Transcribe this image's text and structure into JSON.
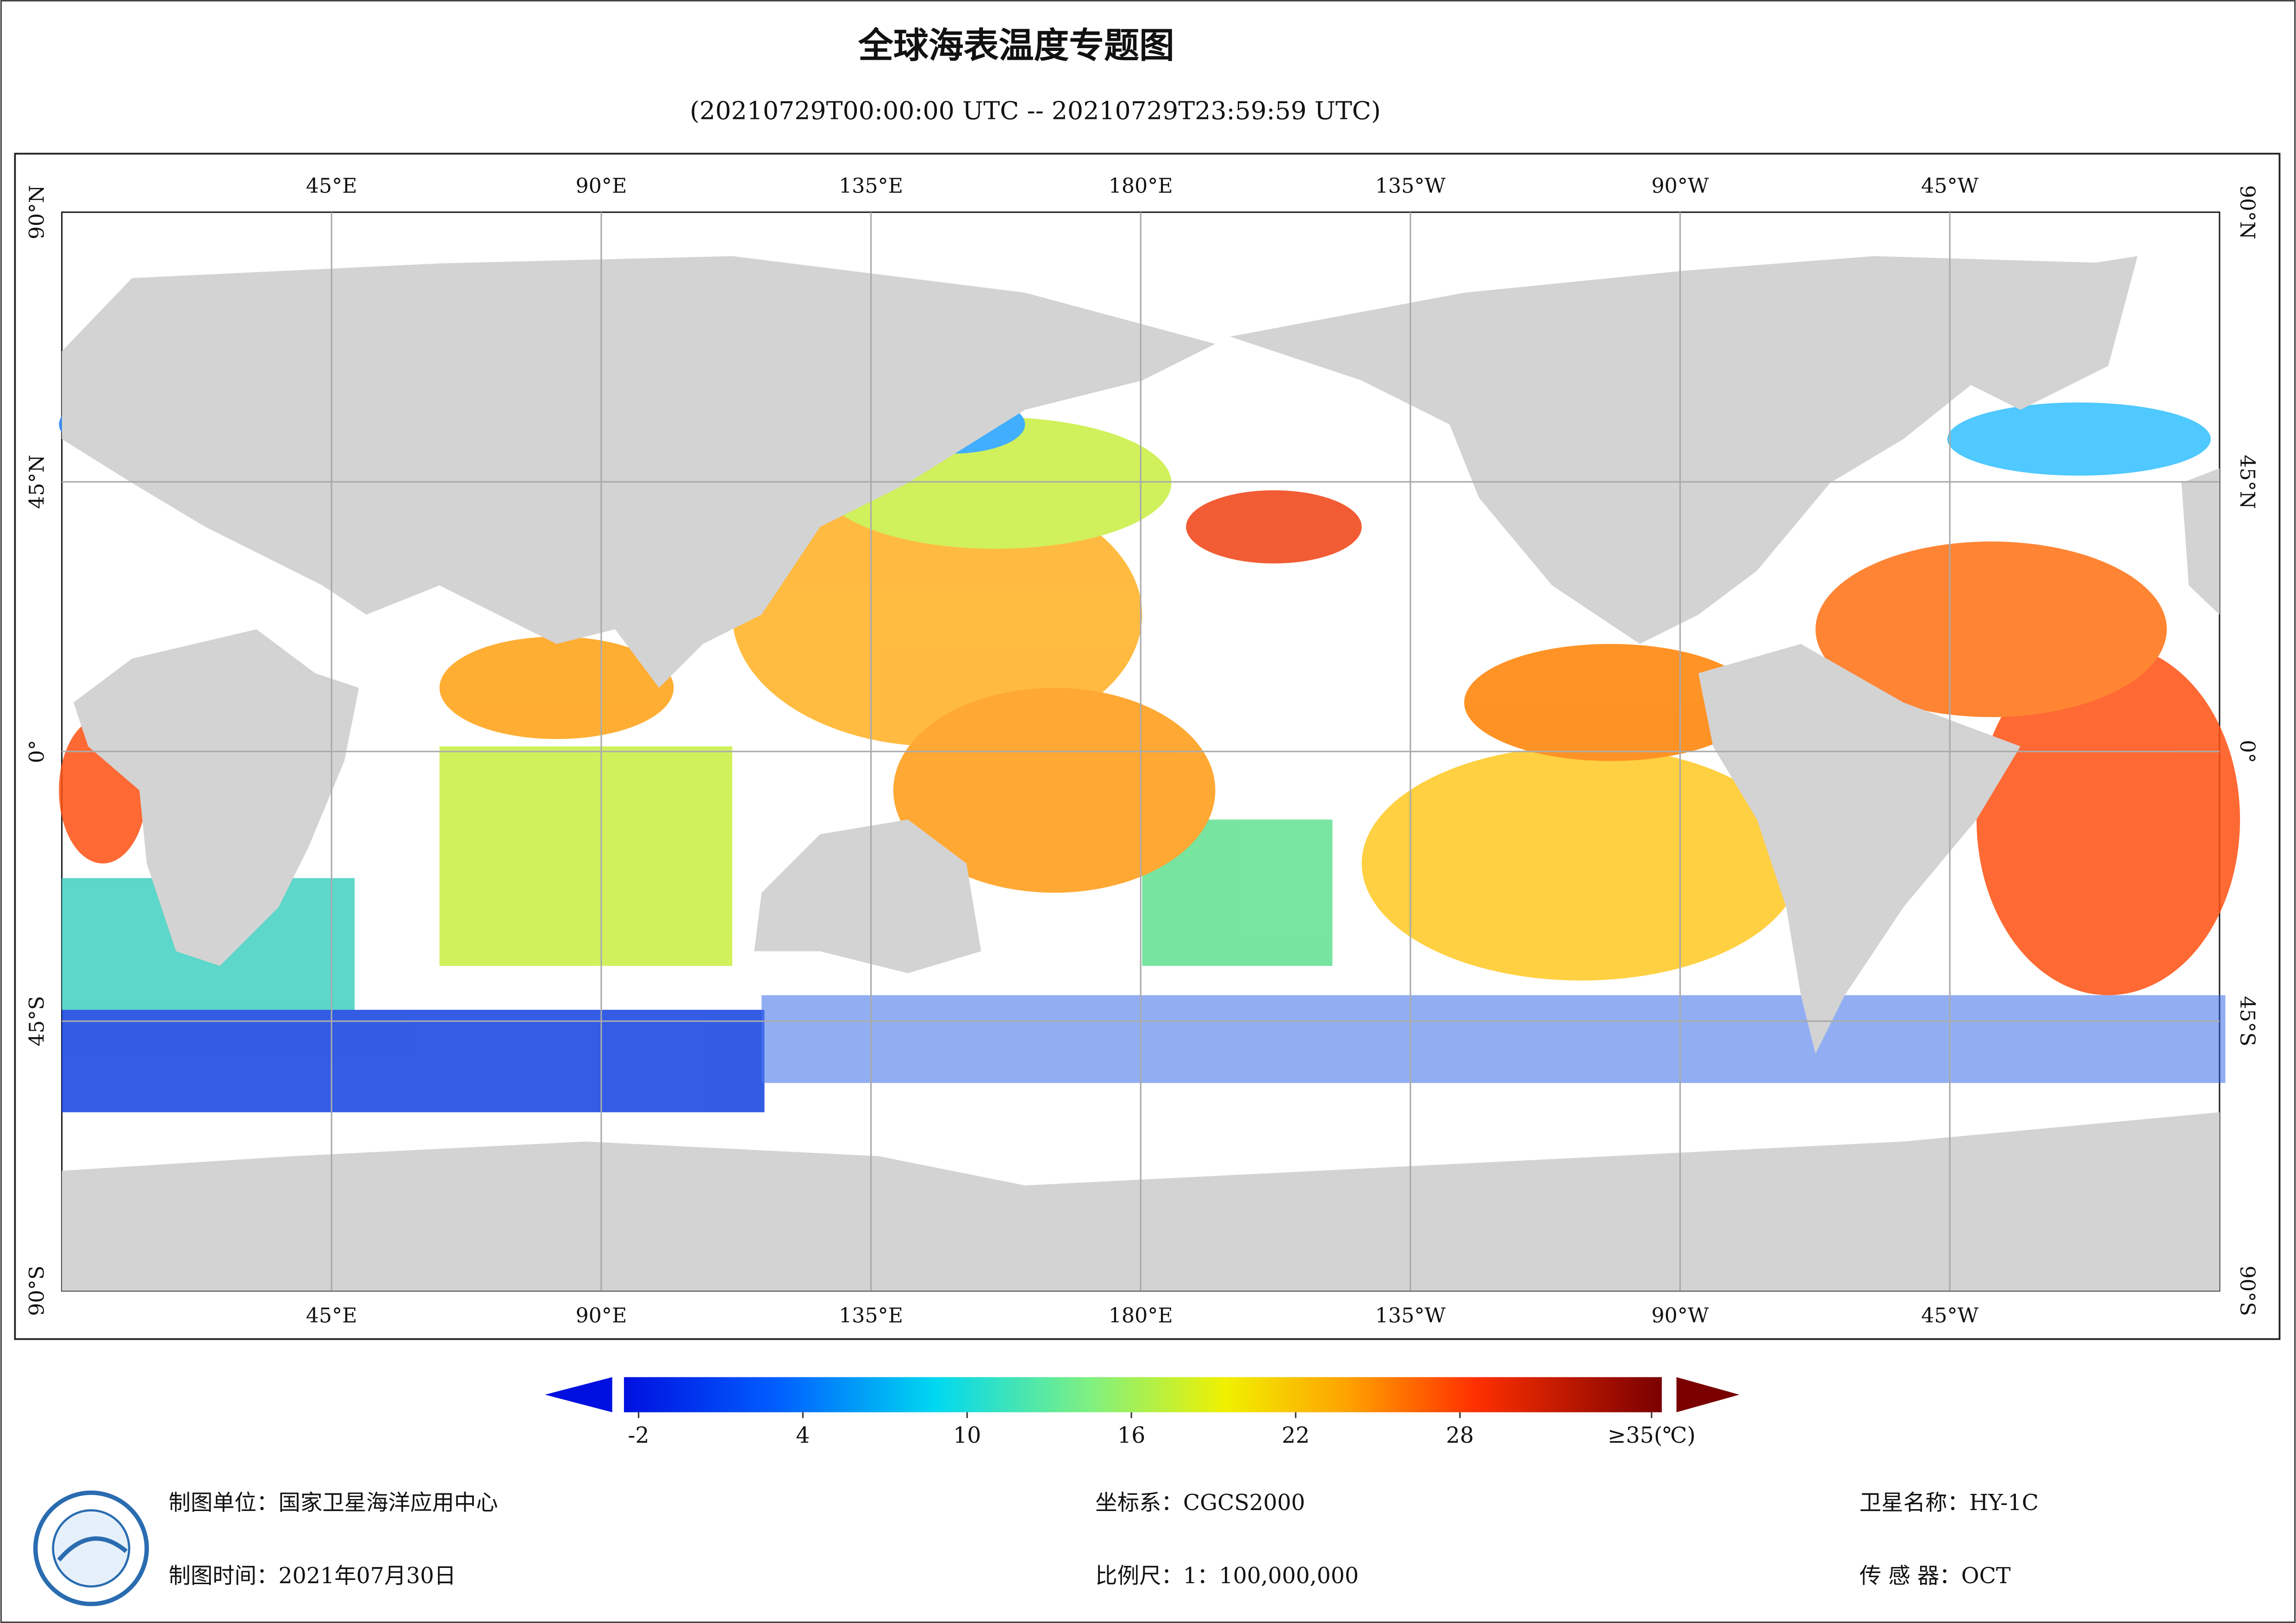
{
  "header": {
    "title": "全球海表温度专题图",
    "subtitle": "(20210729T00:00:00 UTC -- 20210729T23:59:59 UTC)"
  },
  "map": {
    "lon_labels": [
      "45°E",
      "90°E",
      "135°E",
      "180°E",
      "135°W",
      "90°W",
      "45°W"
    ],
    "lat_labels": [
      "90°N",
      "45°N",
      "0°",
      "45°S",
      "90°S"
    ]
  },
  "colorbar": {
    "ticks": [
      -2,
      4,
      10,
      16,
      22,
      28,
      {
        "value": 35,
        "label": "≥35(℃)"
      }
    ]
  },
  "footer": {
    "left": [
      "制图单位：国家卫星海洋应用中心",
      "制图时间：2021年07月30日"
    ],
    "middle": [
      "坐标系：CGCS2000",
      "比例尺：1：100,000,000"
    ],
    "right": [
      "卫星名称：HY-1C",
      "传 感 器：OCT"
    ]
  }
}
